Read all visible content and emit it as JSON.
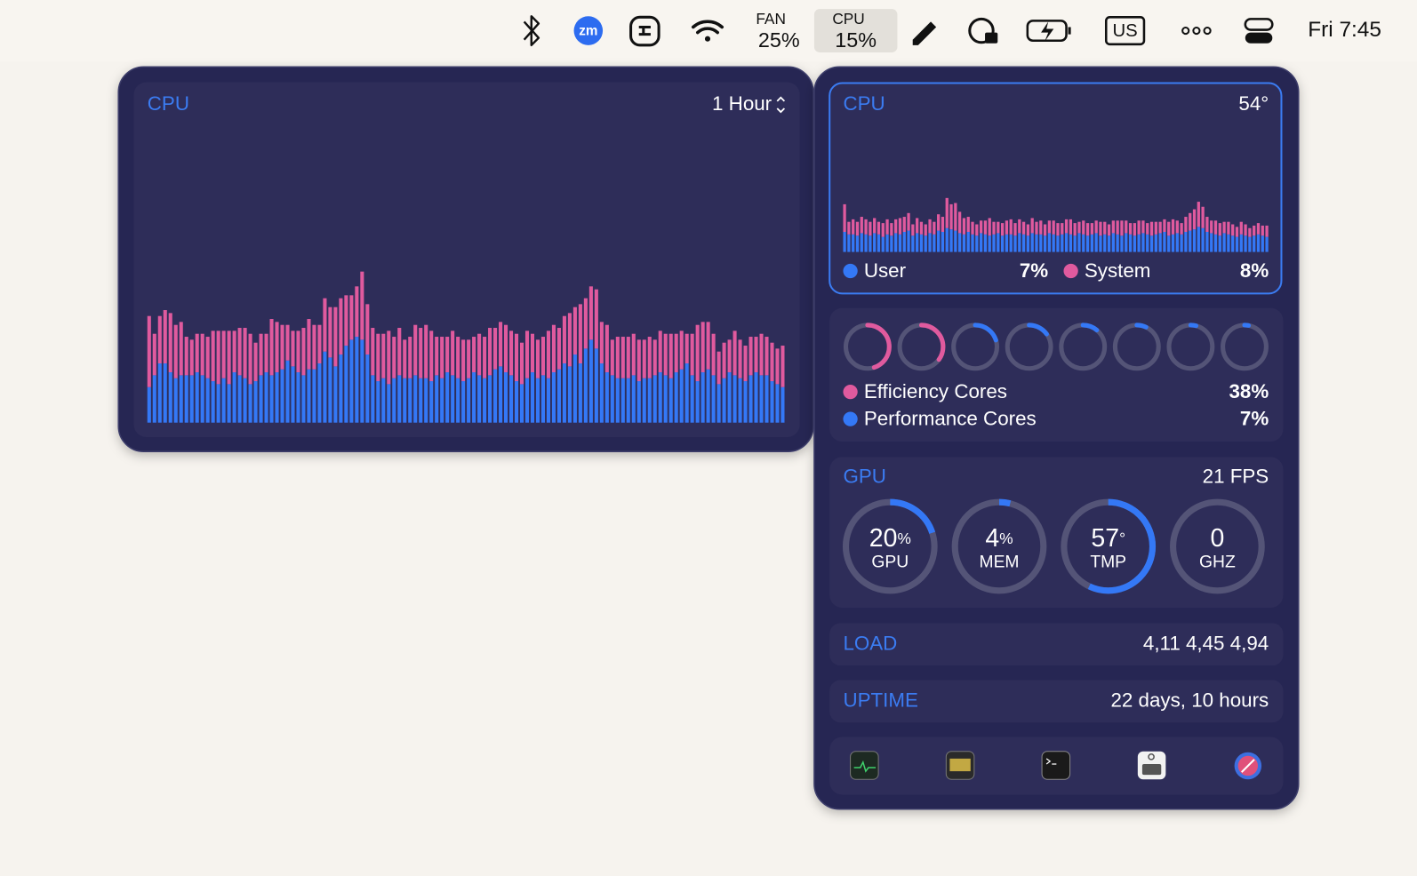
{
  "menu_bar": {
    "zoom": "zm",
    "fan_label": "FAN",
    "fan_value": "25%",
    "cpu_label": "CPU",
    "cpu_value": "15%",
    "input_source": "US",
    "clock": "Fri 7:45"
  },
  "cpu_history": {
    "type": "bar",
    "title": "CPU",
    "range": "1 Hour",
    "ylim": [
      0,
      100
    ],
    "stacked": true,
    "series": [
      {
        "color": "#3478f6",
        "values": [
          12,
          16,
          20,
          20,
          17,
          15,
          16,
          16,
          16,
          17,
          16,
          15,
          14,
          13,
          15,
          13,
          17,
          16,
          15,
          13,
          14,
          16,
          17,
          16,
          17,
          18,
          21,
          19,
          17,
          16,
          18,
          18,
          20,
          24,
          22,
          19,
          23,
          26,
          28,
          29,
          28,
          23,
          16,
          14,
          15,
          13,
          15,
          16,
          15,
          15,
          16,
          15,
          15,
          14,
          16,
          15,
          17,
          16,
          15,
          14,
          15,
          17,
          16,
          15,
          16,
          18,
          19,
          17,
          16,
          14,
          13,
          15,
          17,
          15,
          16,
          15,
          17,
          18,
          20,
          19,
          23,
          20,
          25,
          28,
          25,
          20,
          17,
          16,
          15,
          15,
          15,
          16,
          14,
          15,
          15,
          16,
          17,
          16,
          15,
          17,
          18,
          20,
          16,
          14,
          17,
          18,
          16,
          13,
          15,
          17,
          16,
          15,
          14,
          16,
          17,
          16,
          16,
          14,
          13,
          12
        ]
      },
      {
        "color": "#e05a9e",
        "values": [
          24,
          14,
          16,
          18,
          20,
          18,
          18,
          13,
          12,
          13,
          14,
          14,
          17,
          18,
          16,
          18,
          14,
          16,
          17,
          17,
          13,
          14,
          13,
          19,
          17,
          15,
          12,
          12,
          14,
          16,
          17,
          15,
          13,
          18,
          17,
          20,
          19,
          17,
          15,
          17,
          23,
          17,
          16,
          16,
          15,
          18,
          14,
          16,
          13,
          14,
          17,
          17,
          18,
          17,
          13,
          14,
          12,
          15,
          14,
          14,
          13,
          12,
          14,
          14,
          16,
          14,
          15,
          16,
          15,
          16,
          14,
          16,
          13,
          13,
          13,
          16,
          16,
          14,
          16,
          18,
          16,
          20,
          17,
          18,
          20,
          14,
          16,
          12,
          14,
          14,
          14,
          14,
          14,
          13,
          14,
          12,
          14,
          14,
          15,
          13,
          13,
          10,
          14,
          19,
          17,
          16,
          14,
          11,
          12,
          11,
          15,
          13,
          12,
          13,
          12,
          14,
          13,
          13,
          12,
          14
        ]
      }
    ]
  },
  "cpu_panel": {
    "cpu": {
      "type": "bar",
      "title": "CPU",
      "temperature": "54°",
      "ylim": [
        0,
        100
      ],
      "stacked": true,
      "series": [
        {
          "name": "User",
          "color": "#3478f6",
          "current": "7%",
          "values": [
            16,
            14,
            14,
            13,
            15,
            14,
            13,
            15,
            14,
            12,
            14,
            13,
            15,
            14,
            16,
            17,
            13,
            15,
            14,
            13,
            15,
            14,
            17,
            16,
            19,
            18,
            17,
            15,
            14,
            16,
            14,
            13,
            15,
            14,
            13,
            14,
            15,
            13,
            14,
            14,
            13,
            15,
            14,
            13,
            15,
            14,
            14,
            13,
            15,
            14,
            13,
            14,
            15,
            14,
            13,
            15,
            14,
            13,
            14,
            15,
            13,
            14,
            13,
            15,
            14,
            13,
            15,
            14,
            13,
            14,
            15,
            14,
            13,
            14,
            15,
            16,
            13,
            14,
            15,
            14,
            16,
            17,
            18,
            20,
            19,
            16,
            15,
            14,
            13,
            15,
            14,
            13,
            12,
            14,
            13,
            12,
            13,
            14,
            13,
            12
          ]
        },
        {
          "name": "System",
          "color": "#e05a9e",
          "current": "8%",
          "values": [
            22,
            10,
            12,
            11,
            13,
            12,
            11,
            12,
            10,
            11,
            12,
            10,
            11,
            13,
            12,
            14,
            9,
            12,
            10,
            9,
            11,
            10,
            13,
            12,
            24,
            20,
            22,
            17,
            13,
            12,
            10,
            9,
            10,
            11,
            14,
            10,
            9,
            10,
            11,
            12,
            10,
            11,
            10,
            9,
            12,
            10,
            11,
            9,
            10,
            11,
            10,
            9,
            11,
            12,
            10,
            9,
            11,
            10,
            9,
            10,
            11,
            10,
            9,
            10,
            11,
            12,
            10,
            9,
            10,
            11,
            10,
            9,
            11,
            10,
            9,
            10,
            11,
            12,
            10,
            9,
            12,
            14,
            16,
            20,
            17,
            12,
            10,
            11,
            10,
            9,
            10,
            9,
            8,
            10,
            9,
            7,
            8,
            9,
            8,
            9
          ]
        }
      ]
    },
    "cores": {
      "ylim": [
        0,
        100
      ],
      "series": [
        {
          "name": "Efficiency Cores",
          "color": "#e05a9e",
          "current": "38%",
          "values": [
            45,
            35
          ]
        },
        {
          "name": "Performance Cores",
          "color": "#3478f6",
          "current": "7%",
          "values": [
            20,
            15,
            11,
            7,
            4,
            3
          ]
        }
      ]
    },
    "gpu": {
      "title": "GPU",
      "fps": "21 FPS",
      "ylim": [
        0,
        100
      ],
      "color": "#3478f6",
      "gauges": [
        {
          "value": 20,
          "unit": "%",
          "label": "GPU"
        },
        {
          "value": 4,
          "unit": "%",
          "label": "MEM"
        },
        {
          "value": 57,
          "unit": "°",
          "label": "TMP"
        },
        {
          "value": 0,
          "label": "GHZ"
        }
      ]
    },
    "load": {
      "title": "LOAD",
      "value": "4,11 4,45 4,94"
    },
    "uptime": {
      "title": "UPTIME",
      "value": "22 days, 10 hours"
    }
  }
}
